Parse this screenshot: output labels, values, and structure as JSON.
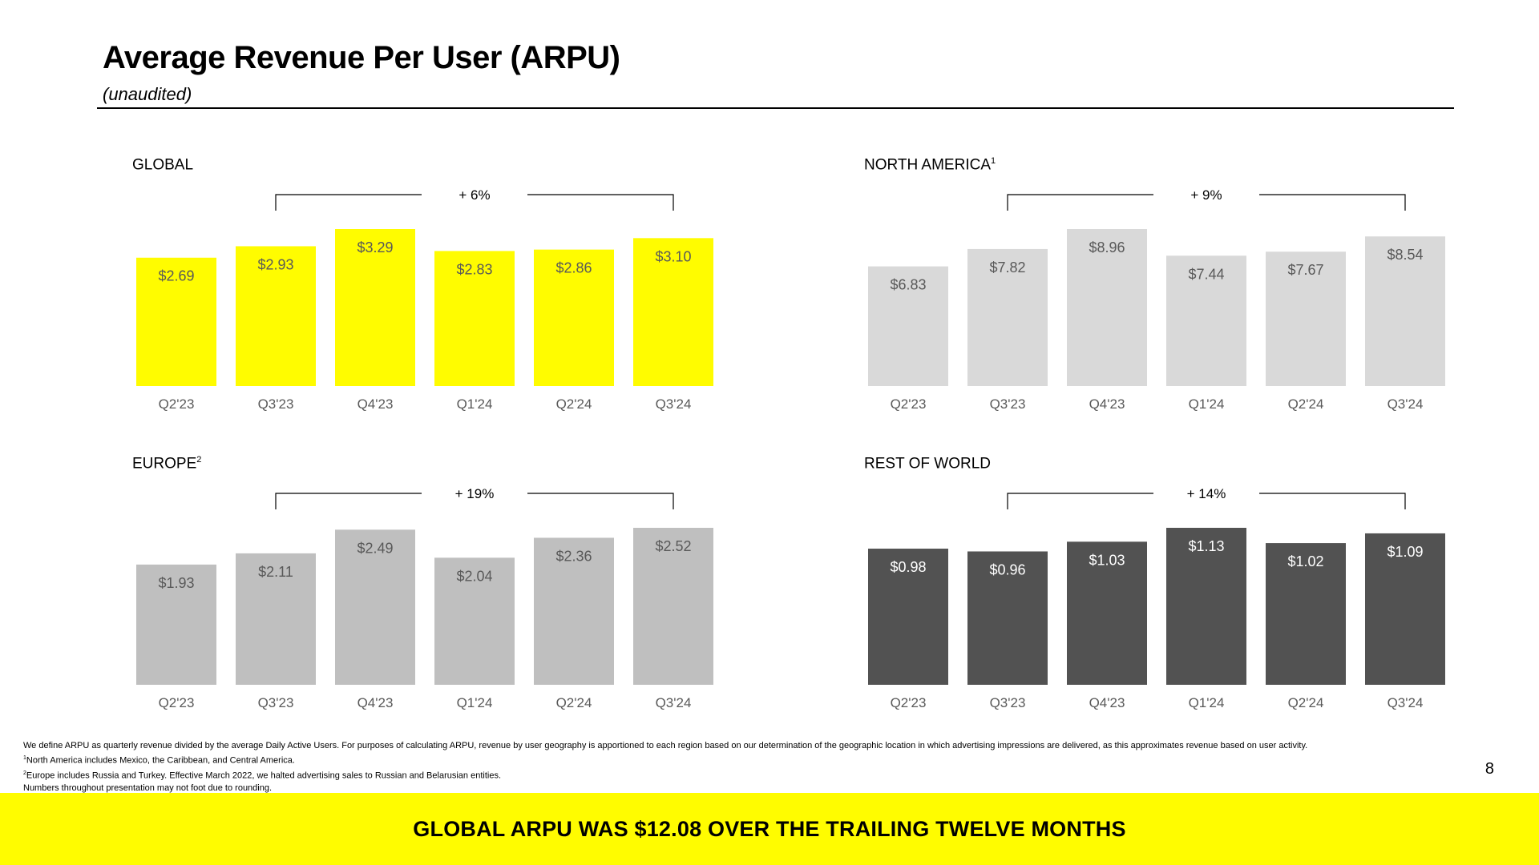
{
  "header": {
    "title": "Average Revenue Per User (ARPU)",
    "subtitle": "(unaudited)"
  },
  "colors": {
    "global": "#FFFC00",
    "north_america": "#D9D9D9",
    "europe": "#BFBFBF",
    "rest_of_world": "#525252"
  },
  "chart_data": [
    {
      "type": "bar",
      "title": "GLOBAL",
      "footnote_marker": "",
      "categories": [
        "Q2'23",
        "Q3'23",
        "Q4'23",
        "Q1'24",
        "Q2'24",
        "Q3'24"
      ],
      "values": [
        2.69,
        2.93,
        3.29,
        2.83,
        2.86,
        3.1
      ],
      "value_labels": [
        "$2.69",
        "$2.93",
        "$3.29",
        "$2.83",
        "$2.86",
        "$3.10"
      ],
      "growth_label": "+ 6%",
      "growth_from": "Q3'23",
      "growth_to": "Q3'24",
      "color": "#FFFC00",
      "label_color": "#595959",
      "grid": false
    },
    {
      "type": "bar",
      "title": "NORTH AMERICA",
      "footnote_marker": "1",
      "categories": [
        "Q2'23",
        "Q3'23",
        "Q4'23",
        "Q1'24",
        "Q2'24",
        "Q3'24"
      ],
      "values": [
        6.83,
        7.82,
        8.96,
        7.44,
        7.67,
        8.54
      ],
      "value_labels": [
        "$6.83",
        "$7.82",
        "$8.96",
        "$7.44",
        "$7.67",
        "$8.54"
      ],
      "growth_label": "+ 9%",
      "growth_from": "Q3'23",
      "growth_to": "Q3'24",
      "color": "#D9D9D9",
      "label_color": "#595959",
      "grid": false
    },
    {
      "type": "bar",
      "title": "EUROPE",
      "footnote_marker": "2",
      "categories": [
        "Q2'23",
        "Q3'23",
        "Q4'23",
        "Q1'24",
        "Q2'24",
        "Q3'24"
      ],
      "values": [
        1.93,
        2.11,
        2.49,
        2.04,
        2.36,
        2.52
      ],
      "value_labels": [
        "$1.93",
        "$2.11",
        "$2.49",
        "$2.04",
        "$2.36",
        "$2.52"
      ],
      "growth_label": "+ 19%",
      "growth_from": "Q3'23",
      "growth_to": "Q3'24",
      "color": "#BFBFBF",
      "label_color": "#595959",
      "grid": false
    },
    {
      "type": "bar",
      "title": "REST OF WORLD",
      "footnote_marker": "",
      "categories": [
        "Q2'23",
        "Q3'23",
        "Q4'23",
        "Q1'24",
        "Q2'24",
        "Q3'24"
      ],
      "values": [
        0.98,
        0.96,
        1.03,
        1.13,
        1.02,
        1.09
      ],
      "value_labels": [
        "$0.98",
        "$0.96",
        "$1.03",
        "$1.13",
        "$1.02",
        "$1.09"
      ],
      "growth_label": "+ 14%",
      "growth_from": "Q3'23",
      "growth_to": "Q3'24",
      "color": "#525252",
      "label_color": "#ffffff",
      "grid": false
    }
  ],
  "footnotes": {
    "definition": "We define ARPU as quarterly revenue divided by the average Daily Active Users. For purposes of calculating ARPU, revenue by user geography is apportioned to each region based on our determination of the geographic location in which advertising impressions are delivered, as this approximates revenue based on user activity.",
    "note1_marker": "1",
    "note1": "North America includes Mexico, the Caribbean, and Central America.",
    "note2_marker": "2",
    "note2": "Europe includes Russia and Turkey. Effective March 2022, we halted advertising sales to Russian and Belarusian entities.",
    "rounding": "Numbers throughout presentation may not foot due to rounding."
  },
  "page_number": "8",
  "banner": {
    "text": "GLOBAL ARPU WAS $12.08 OVER THE TRAILING TWELVE MONTHS"
  }
}
